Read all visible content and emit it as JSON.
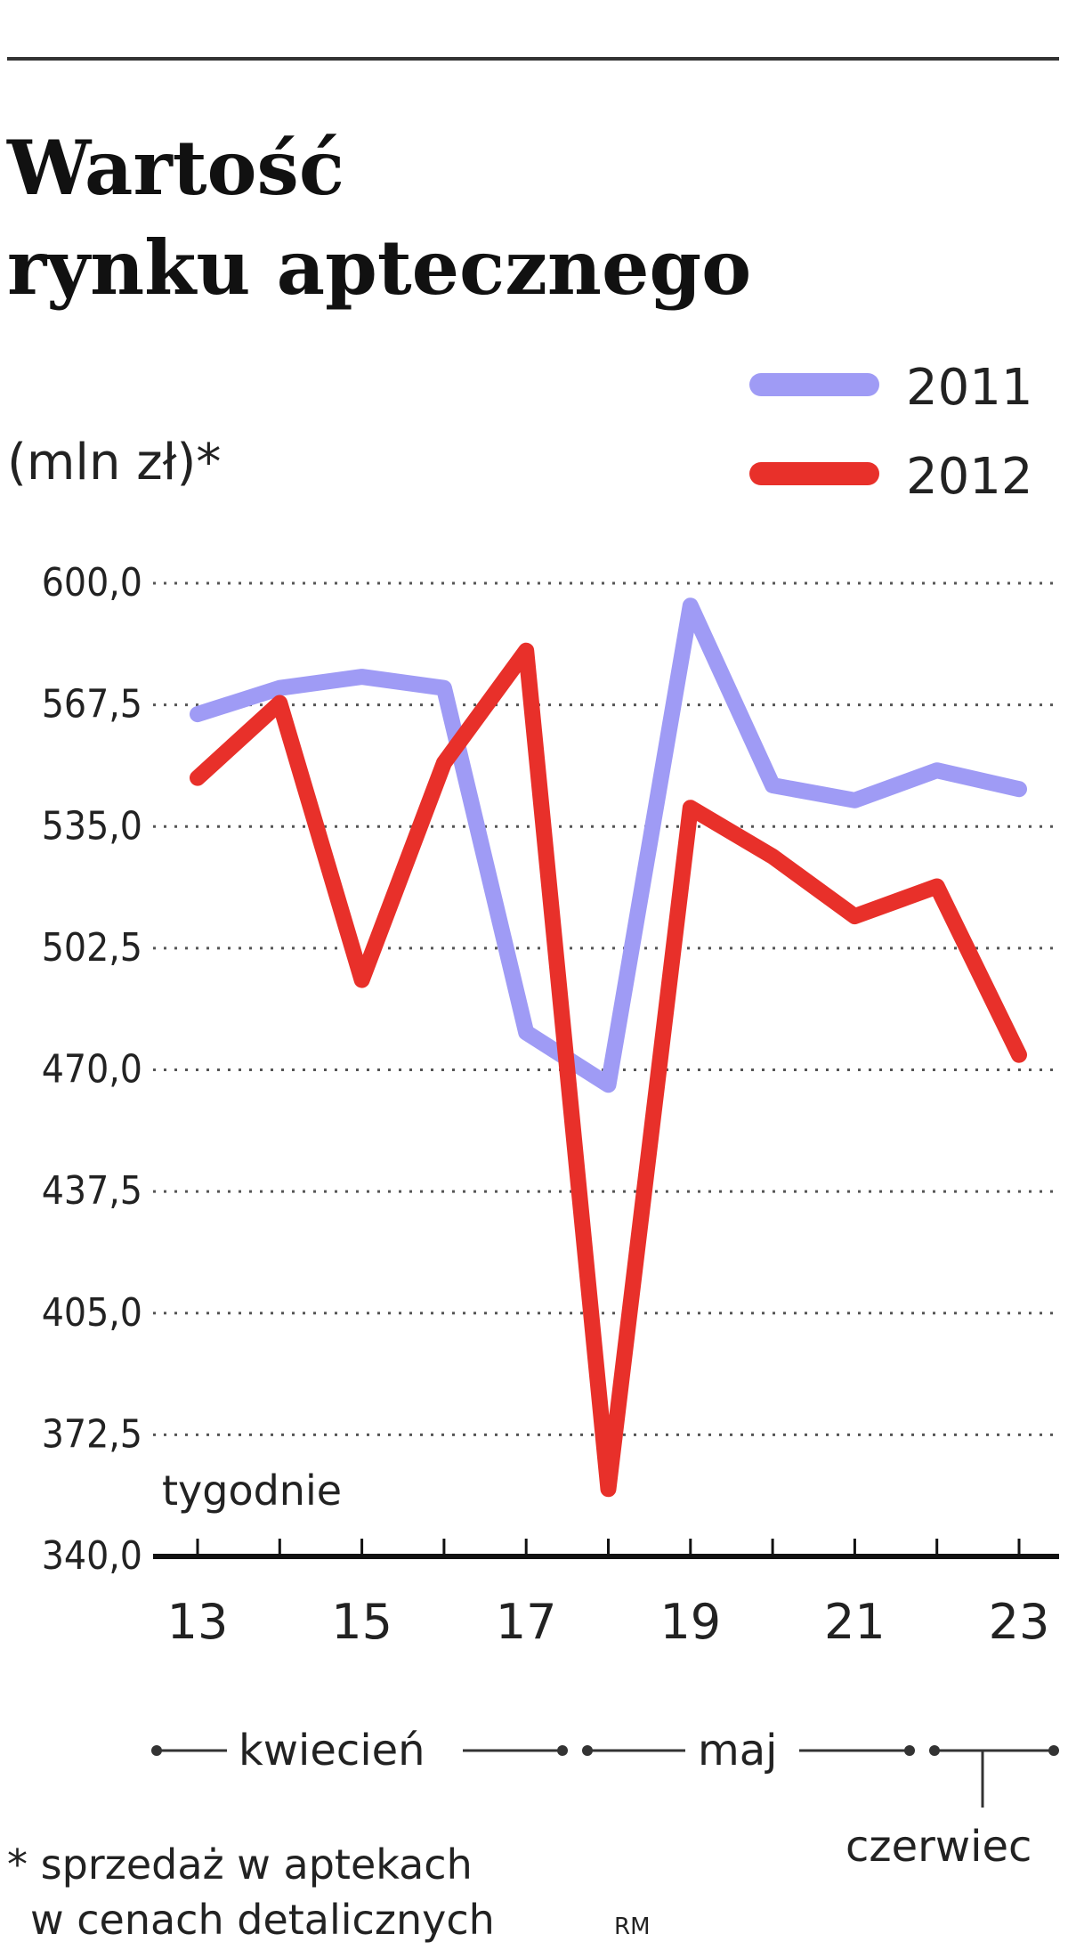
{
  "chart_data": {
    "type": "line",
    "title_line1": "Wartość",
    "title_line2": "rynku aptecznego",
    "unit_label": "(mln zł)*",
    "xlabel": "tygodnie",
    "x": [
      13,
      14,
      15,
      16,
      17,
      18,
      19,
      20,
      21,
      22,
      23
    ],
    "x_tick_labels": [
      "13",
      "15",
      "17",
      "19",
      "21",
      "23"
    ],
    "x_tick_values": [
      13,
      15,
      17,
      19,
      21,
      23
    ],
    "ylim": [
      340,
      600
    ],
    "y_ticks": [
      "340,0",
      "372,5",
      "405,0",
      "437,5",
      "470,0",
      "502,5",
      "535,0",
      "567,5",
      "600,0"
    ],
    "y_tick_values": [
      340,
      372.5,
      405,
      437.5,
      470,
      502.5,
      535,
      567.5,
      600
    ],
    "grid": "horizontal dotted",
    "legend_position": "top-right",
    "series": [
      {
        "name": "2011",
        "color": "#9f9bf5",
        "values": [
          565,
          572,
          575,
          572,
          480,
          466,
          594,
          546,
          542,
          550,
          545
        ]
      },
      {
        "name": "2012",
        "color": "#e8302a",
        "values": [
          548,
          568,
          494,
          552,
          582,
          358,
          540,
          527,
          511,
          519,
          474
        ]
      }
    ],
    "months": [
      "kwiecień",
      "maj",
      "czerwiec"
    ],
    "footnote_line1": "* sprzedaż w aptekach",
    "footnote_line2": "w cenach detalicznych",
    "credit": "RM"
  }
}
